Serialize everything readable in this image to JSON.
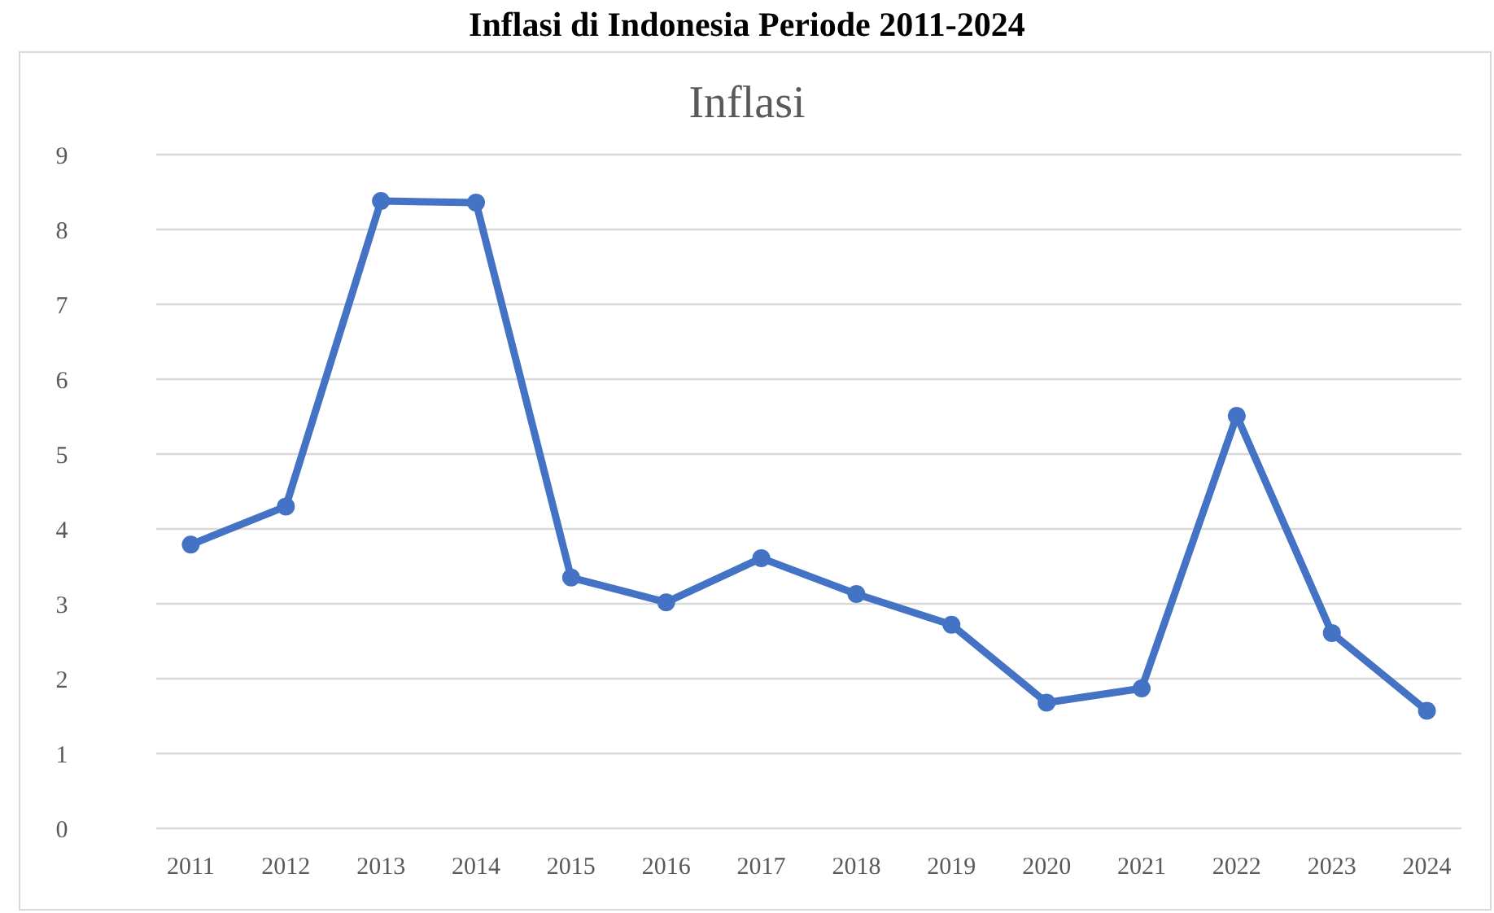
{
  "chart_data": {
    "type": "line",
    "title": "Inflasi di Indonesia Periode 2011-2024",
    "subtitle": "Inflasi",
    "categories": [
      "2011",
      "2012",
      "2013",
      "2014",
      "2015",
      "2016",
      "2017",
      "2018",
      "2019",
      "2020",
      "2021",
      "2022",
      "2023",
      "2024"
    ],
    "series": [
      {
        "color": "#4472c4",
        "values": [
          3.79,
          4.3,
          8.38,
          8.36,
          3.35,
          3.02,
          3.61,
          3.13,
          2.72,
          1.68,
          1.87,
          5.51,
          2.61,
          1.57
        ]
      }
    ],
    "ylim": [
      0,
      9
    ],
    "yticks": [
      0,
      1,
      2,
      3,
      4,
      5,
      6,
      7,
      8,
      9
    ],
    "grid": "y",
    "marker": "circle",
    "line_style": "solid"
  }
}
